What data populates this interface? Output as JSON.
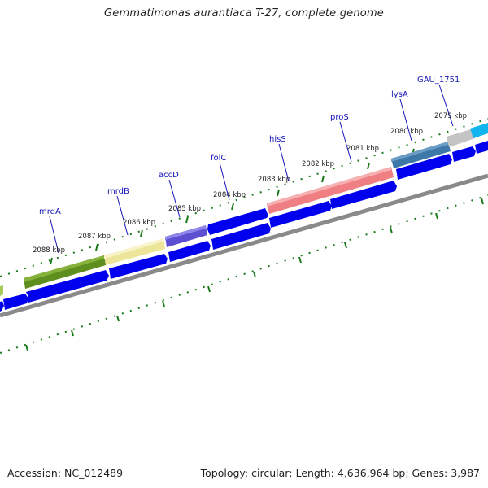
{
  "title": "Gemmatimonas aurantiaca T-27, complete genome",
  "accession": "Accession: NC_012489",
  "summary": "Topology: circular; Length: 4,636,964 bp; Genes: 3,987",
  "genes": [
    {
      "name": "mrdA",
      "fill": "#5d8e1e",
      "highlight": "#86b23c"
    },
    {
      "name": "mrdB",
      "fill": "#ede59a",
      "highlight": "#f8f3c8"
    },
    {
      "name": "accD",
      "fill": "#5c4fd1",
      "highlight": "#8f86e8"
    },
    {
      "name": "folC",
      "fill": "#0000ee",
      "highlight": "#0000ee"
    },
    {
      "name": "hisS",
      "fill": "#ef7f82",
      "highlight": "#f7b0b1"
    },
    {
      "name": "proS",
      "fill": "#0000ee",
      "highlight": "#0000ee"
    },
    {
      "name": "lysA",
      "fill": "#3d78a8",
      "highlight": "#6a9cc4"
    },
    {
      "name": "GAU_1751",
      "fill": "#c4c4c4",
      "highlight": "#dedede"
    }
  ],
  "scale_labels": [
    "2088 kbp",
    "2087 kbp",
    "2086 kbp",
    "2085 kbp",
    "2084 kbp",
    "2083 kbp",
    "2082 kbp",
    "2081 kbp",
    "2080 kbp",
    "2079 kbp"
  ],
  "colors": {
    "strand_arrow": "#0000ee",
    "backbone": "#8a8a8a",
    "ticks": "#1a7a1a",
    "gene_label": "#1515b8",
    "offscreen_gene_left": "#a9c957",
    "offscreen_gene_right": "#10b4ee"
  }
}
